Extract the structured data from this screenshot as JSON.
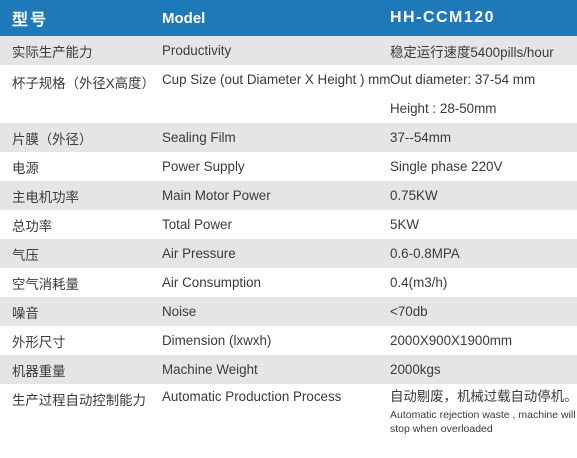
{
  "header": {
    "col1": "型号",
    "col2": "Model",
    "col3": "HH-CCM120"
  },
  "rows": [
    {
      "cn": "实际生产能力",
      "en": "Productivity",
      "value": "稳定运行速度5400pills/hour"
    },
    {
      "cn": "杯子规格（外径X高度）",
      "en": "Cup Size (out Diameter X Height ) mm",
      "value": "Out diameter: 37-54 mm",
      "value2": "Height : 28-50mm"
    },
    {
      "cn": "片膜（外径）",
      "en": "Sealing Film",
      "value": "37--54mm"
    },
    {
      "cn": "电源",
      "en": "Power Supply",
      "value": "Single phase 220V"
    },
    {
      "cn": "主电机功率",
      "en": "Main Motor Power",
      "value": "0.75KW"
    },
    {
      "cn": "总功率",
      "en": "Total Power",
      "value": "5KW"
    },
    {
      "cn": "气压",
      "en": "Air Pressure",
      "value": "0.6-0.8MPA"
    },
    {
      "cn": "空气消耗量",
      "en": "Air Consumption",
      "value": "0.4(m3/h)"
    },
    {
      "cn": "噪音",
      "en": "Noise",
      "value": "<70db"
    },
    {
      "cn": "外形尺寸",
      "en": "Dimension (lxwxh)",
      "value": "2000X900X1900mm"
    },
    {
      "cn": "机器重量",
      "en": "Machine Weight",
      "value": "2000kgs"
    },
    {
      "cn": "生产过程自动控制能力",
      "en": "Automatic Production Process",
      "value": "自动剔废，机械过载自动停机。",
      "note": "Automatic rejection waste , machine will stop when overloaded"
    }
  ],
  "colors": {
    "header_bg": "#1e79b8",
    "row_gray": "#e5e5e5",
    "row_white": "#ffffff",
    "text": "#3a3a3a"
  }
}
